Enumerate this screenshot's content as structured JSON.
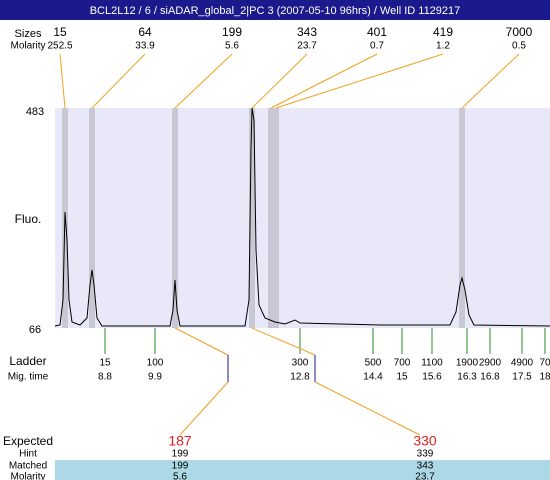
{
  "header": {
    "title": "BCL2L12 / 6 / siADAR_global_2|PC 3 (2007-05-10 96hrs) / Well ID 1129217"
  },
  "peaks": {
    "size_label": "Sizes",
    "molarity_label": "Molarity",
    "items": [
      {
        "size": "15",
        "molarity": "252.5"
      },
      {
        "size": "64",
        "molarity": "33.9"
      },
      {
        "size": "199",
        "molarity": "5.6"
      },
      {
        "size": "343",
        "molarity": "23.7"
      },
      {
        "size": "401",
        "molarity": "0.7"
      },
      {
        "size": "419",
        "molarity": "1.2"
      },
      {
        "size": "7000",
        "molarity": "0.5"
      }
    ]
  },
  "plot": {
    "y_label": "Fluo.",
    "y_top": "483",
    "y_bottom": "66"
  },
  "ladder": {
    "size_label": "Ladder",
    "time_label": "Mig. time",
    "items": [
      {
        "size": "15",
        "time": "8.8"
      },
      {
        "size": "100",
        "time": "9.9"
      },
      {
        "size": "300",
        "time": "12.8"
      },
      {
        "size": "500",
        "time": "14.4"
      },
      {
        "size": "700",
        "time": "15"
      },
      {
        "size": "1100",
        "time": "15.6"
      },
      {
        "size": "1900",
        "time": "16.3"
      },
      {
        "size": "2900",
        "time": "16.8"
      },
      {
        "size": "4900",
        "time": "17.5"
      },
      {
        "size": "70",
        "time": "18"
      }
    ]
  },
  "table": {
    "labels": [
      "Expected",
      "Hint",
      "Matched",
      "Molarity"
    ],
    "columns": [
      {
        "expected": "187",
        "hint": "199",
        "matched": "199",
        "molarity": "5.6"
      },
      {
        "expected": "330",
        "hint": "339",
        "matched": "343",
        "molarity": "23.7"
      }
    ]
  }
}
